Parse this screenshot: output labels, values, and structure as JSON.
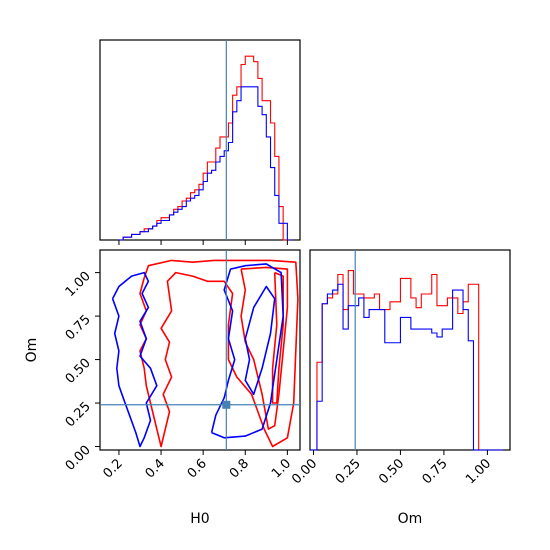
{
  "chart_data": {
    "type": "corner",
    "parameters": [
      "H0",
      "Om"
    ],
    "truths": {
      "H0": 0.71,
      "Om": 0.24
    },
    "truth_color": "#4682b4",
    "series": [
      {
        "color": "#ff0000"
      },
      {
        "color": "#0000ff"
      }
    ],
    "axes": {
      "H0": {
        "label": "H0",
        "range": [
          0.11,
          1.06
        ],
        "ticks": [
          0.2,
          0.4,
          0.6,
          0.8,
          1.0
        ],
        "tick_labels": [
          "0.2",
          "0.4",
          "0.6",
          "0.8",
          "1.0"
        ]
      },
      "Om": {
        "label": "Om",
        "range": [
          -0.02,
          1.13
        ],
        "ticks": [
          0.0,
          0.25,
          0.5,
          0.75,
          1.0
        ],
        "tick_labels": [
          "0.00",
          "0.25",
          "0.50",
          "0.75",
          "1.00"
        ]
      }
    },
    "hist_H0": {
      "bin_edges": [
        0.2,
        0.22,
        0.24,
        0.26,
        0.28,
        0.3,
        0.32,
        0.34,
        0.36,
        0.38,
        0.4,
        0.42,
        0.44,
        0.46,
        0.48,
        0.5,
        0.52,
        0.54,
        0.56,
        0.58,
        0.6,
        0.62,
        0.64,
        0.66,
        0.68,
        0.7,
        0.72,
        0.74,
        0.76,
        0.78,
        0.8,
        0.82,
        0.84,
        0.86,
        0.88,
        0.9,
        0.92,
        0.94,
        0.96,
        0.98,
        1.0,
        1.02
      ],
      "red": [
        0,
        1,
        1,
        2,
        2,
        3,
        4,
        4,
        5,
        7,
        8,
        8,
        9,
        11,
        12,
        14,
        15,
        17,
        18,
        20,
        24,
        28,
        28,
        33,
        37,
        37,
        42,
        52,
        55,
        63,
        66,
        66,
        64,
        58,
        50,
        50,
        42,
        30,
        12,
        0,
        0
      ],
      "blue": [
        0,
        1,
        1,
        2,
        2,
        3,
        3,
        4,
        5,
        6,
        7,
        7,
        9,
        10,
        11,
        12,
        14,
        15,
        16,
        18,
        21,
        24,
        25,
        28,
        30,
        32,
        35,
        46,
        50,
        55,
        55,
        55,
        55,
        48,
        45,
        37,
        26,
        16,
        6,
        6,
        0
      ]
    },
    "hist_Om": {
      "bin_edges": [
        -0.02,
        0.02,
        0.05,
        0.08,
        0.11,
        0.14,
        0.17,
        0.2,
        0.23,
        0.26,
        0.29,
        0.32,
        0.35,
        0.38,
        0.41,
        0.44,
        0.47,
        0.5,
        0.53,
        0.56,
        0.59,
        0.62,
        0.65,
        0.68,
        0.71,
        0.74,
        0.77,
        0.8,
        0.83,
        0.86,
        0.89,
        0.92,
        0.95,
        0.98,
        1.01,
        1.05,
        1.09
      ],
      "red": [
        0,
        45,
        75,
        78,
        80,
        90,
        72,
        92,
        80,
        80,
        78,
        78,
        80,
        72,
        72,
        76,
        76,
        88,
        88,
        78,
        73,
        80,
        80,
        90,
        74,
        74,
        78,
        78,
        70,
        76,
        85,
        85,
        0,
        0,
        0,
        0
      ],
      "blue": [
        0,
        25,
        75,
        80,
        82,
        85,
        62,
        74,
        74,
        78,
        68,
        72,
        72,
        72,
        55,
        55,
        55,
        68,
        68,
        62,
        62,
        62,
        62,
        60,
        58,
        62,
        62,
        82,
        82,
        72,
        56,
        0,
        0,
        0,
        0,
        0
      ]
    },
    "contours_2d": {
      "red_outer": [
        [
          0.32,
          0.97
        ],
        [
          0.34,
          1.04
        ],
        [
          0.45,
          1.07
        ],
        [
          0.55,
          1.06
        ],
        [
          0.65,
          1.07
        ],
        [
          0.78,
          1.07
        ],
        [
          0.92,
          1.07
        ],
        [
          1.04,
          1.06
        ],
        [
          1.05,
          0.85
        ],
        [
          1.04,
          0.55
        ],
        [
          1.03,
          0.25
        ],
        [
          1.0,
          0.05
        ],
        [
          0.93,
          0.0
        ],
        [
          0.89,
          0.1
        ],
        [
          0.83,
          0.3
        ],
        [
          0.76,
          0.4
        ],
        [
          0.72,
          0.5
        ],
        [
          0.72,
          0.7
        ],
        [
          0.74,
          0.88
        ],
        [
          0.7,
          0.95
        ],
        [
          0.62,
          0.95
        ],
        [
          0.55,
          0.98
        ],
        [
          0.47,
          1.0
        ],
        [
          0.43,
          0.95
        ],
        [
          0.45,
          0.78
        ],
        [
          0.4,
          0.68
        ],
        [
          0.44,
          0.6
        ],
        [
          0.42,
          0.5
        ],
        [
          0.45,
          0.4
        ],
        [
          0.41,
          0.3
        ],
        [
          0.44,
          0.2
        ],
        [
          0.42,
          0.1
        ],
        [
          0.4,
          0.0
        ],
        [
          0.38,
          0.1
        ],
        [
          0.35,
          0.25
        ],
        [
          0.33,
          0.35
        ],
        [
          0.32,
          0.45
        ],
        [
          0.3,
          0.55
        ],
        [
          0.33,
          0.62
        ],
        [
          0.3,
          0.7
        ],
        [
          0.33,
          0.78
        ],
        [
          0.3,
          0.88
        ],
        [
          0.32,
          0.97
        ]
      ],
      "red_inner": [
        [
          0.78,
          1.02
        ],
        [
          0.9,
          1.03
        ],
        [
          1.0,
          1.02
        ],
        [
          1.0,
          0.8
        ],
        [
          0.98,
          0.55
        ],
        [
          0.96,
          0.3
        ],
        [
          0.94,
          0.12
        ],
        [
          0.91,
          0.1
        ],
        [
          0.88,
          0.3
        ],
        [
          0.84,
          0.5
        ],
        [
          0.8,
          0.6
        ],
        [
          0.78,
          0.75
        ],
        [
          0.8,
          0.9
        ],
        [
          0.78,
          1.02
        ]
      ],
      "red_core": [
        [
          0.94,
          1.0
        ],
        [
          0.98,
          0.98
        ],
        [
          0.98,
          0.7
        ],
        [
          0.96,
          0.45
        ],
        [
          0.95,
          0.25
        ],
        [
          0.93,
          0.25
        ],
        [
          0.93,
          0.45
        ],
        [
          0.95,
          0.7
        ],
        [
          0.94,
          1.0
        ]
      ],
      "blue_outer": [
        [
          0.17,
          0.85
        ],
        [
          0.2,
          0.92
        ],
        [
          0.26,
          0.98
        ],
        [
          0.32,
          1.0
        ],
        [
          0.34,
          0.95
        ],
        [
          0.31,
          0.88
        ],
        [
          0.34,
          0.8
        ],
        [
          0.3,
          0.72
        ],
        [
          0.33,
          0.62
        ],
        [
          0.3,
          0.52
        ],
        [
          0.35,
          0.45
        ],
        [
          0.38,
          0.35
        ],
        [
          0.33,
          0.25
        ],
        [
          0.35,
          0.15
        ],
        [
          0.32,
          0.05
        ],
        [
          0.3,
          0.0
        ],
        [
          0.28,
          0.08
        ],
        [
          0.25,
          0.18
        ],
        [
          0.22,
          0.28
        ],
        [
          0.2,
          0.35
        ],
        [
          0.19,
          0.45
        ],
        [
          0.2,
          0.55
        ],
        [
          0.18,
          0.65
        ],
        [
          0.2,
          0.75
        ],
        [
          0.17,
          0.85
        ]
      ],
      "blue_right": [
        [
          0.64,
          0.08
        ],
        [
          0.7,
          0.05
        ],
        [
          0.8,
          0.06
        ],
        [
          0.88,
          0.1
        ],
        [
          0.92,
          0.25
        ],
        [
          0.95,
          0.5
        ],
        [
          0.98,
          0.75
        ],
        [
          0.97,
          1.0
        ],
        [
          0.9,
          1.05
        ],
        [
          0.8,
          1.04
        ],
        [
          0.73,
          1.02
        ],
        [
          0.7,
          0.9
        ],
        [
          0.74,
          0.78
        ],
        [
          0.72,
          0.62
        ],
        [
          0.75,
          0.5
        ],
        [
          0.72,
          0.38
        ],
        [
          0.7,
          0.28
        ],
        [
          0.66,
          0.18
        ],
        [
          0.64,
          0.08
        ]
      ],
      "blue_inner": [
        [
          0.8,
          0.62
        ],
        [
          0.84,
          0.8
        ],
        [
          0.9,
          0.92
        ],
        [
          0.94,
          0.85
        ],
        [
          0.92,
          0.65
        ],
        [
          0.88,
          0.45
        ],
        [
          0.84,
          0.3
        ],
        [
          0.8,
          0.38
        ],
        [
          0.82,
          0.5
        ],
        [
          0.8,
          0.62
        ]
      ]
    }
  }
}
